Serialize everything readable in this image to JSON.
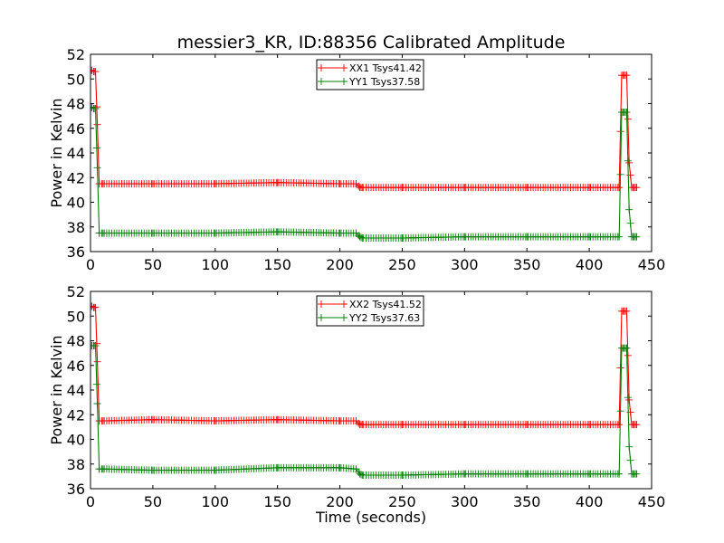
{
  "figure": {
    "title": "messier3_KR, ID:88356 Calibrated Amplitude",
    "xlabel": "Time (seconds)"
  },
  "colors": {
    "red_series": "#ff0000",
    "green_series": "#008000"
  },
  "chart_data": [
    {
      "type": "line",
      "marker": "plus",
      "title": "messier3_KR, ID:88356 Calibrated Amplitude",
      "xlabel": "",
      "ylabel": "Power in Kelvin",
      "xlim": [
        0,
        450
      ],
      "ylim": [
        36,
        52
      ],
      "xticks": [
        0,
        50,
        100,
        150,
        200,
        250,
        300,
        350,
        400,
        450
      ],
      "yticks": [
        36,
        38,
        40,
        42,
        44,
        46,
        48,
        50,
        52
      ],
      "grid": false,
      "legend": "top-center",
      "series": [
        {
          "name": "XX1 Tsys41.42",
          "color": "#ff0000",
          "x": [
            1,
            2.5,
            4,
            5.5,
            7,
            10,
            50,
            100,
            150,
            200,
            213,
            216,
            218,
            250,
            300,
            350,
            400,
            424,
            426,
            428,
            430,
            432,
            434,
            436,
            438
          ],
          "y": [
            50.7,
            50.6,
            50.6,
            46.3,
            41.5,
            41.5,
            41.5,
            41.5,
            41.6,
            41.5,
            41.5,
            41.2,
            41.2,
            41.2,
            41.2,
            41.2,
            41.2,
            41.2,
            50.3,
            50.3,
            50.3,
            43.2,
            41.2,
            41.2,
            41.2
          ]
        },
        {
          "name": "YY1 Tsys37.58",
          "color": "#008000",
          "x": [
            1,
            2.5,
            4,
            5.5,
            7,
            10,
            50,
            100,
            150,
            200,
            213,
            216,
            218,
            250,
            300,
            350,
            400,
            424,
            426,
            428,
            430,
            432,
            434,
            436,
            438
          ],
          "y": [
            47.7,
            47.6,
            47.6,
            42.8,
            37.5,
            37.5,
            37.5,
            37.5,
            37.6,
            37.5,
            37.5,
            37.2,
            37.1,
            37.1,
            37.2,
            37.2,
            37.2,
            37.2,
            47.3,
            47.3,
            47.3,
            39.4,
            37.2,
            37.2,
            37.2
          ]
        }
      ]
    },
    {
      "type": "line",
      "marker": "plus",
      "title": "",
      "xlabel": "Time (seconds)",
      "ylabel": "Power in Kelvin",
      "xlim": [
        0,
        450
      ],
      "ylim": [
        36,
        52
      ],
      "xticks": [
        0,
        50,
        100,
        150,
        200,
        250,
        300,
        350,
        400,
        450
      ],
      "yticks": [
        36,
        38,
        40,
        42,
        44,
        46,
        48,
        50,
        52
      ],
      "grid": false,
      "legend": "top-center",
      "series": [
        {
          "name": "XX2 Tsys41.52",
          "color": "#ff0000",
          "x": [
            1,
            2.5,
            4,
            5.5,
            7,
            10,
            50,
            100,
            150,
            200,
            213,
            216,
            218,
            250,
            300,
            350,
            400,
            424,
            426,
            428,
            430,
            432,
            434,
            436,
            438
          ],
          "y": [
            50.8,
            50.7,
            50.7,
            46.3,
            41.5,
            41.5,
            41.6,
            41.5,
            41.6,
            41.5,
            41.5,
            41.2,
            41.2,
            41.2,
            41.2,
            41.2,
            41.2,
            41.2,
            50.4,
            50.4,
            50.4,
            43.2,
            41.2,
            41.2,
            41.2
          ]
        },
        {
          "name": "YY2 Tsys37.63",
          "color": "#008000",
          "x": [
            1,
            2.5,
            4,
            5.5,
            7,
            10,
            50,
            100,
            150,
            200,
            213,
            216,
            218,
            250,
            300,
            350,
            400,
            424,
            426,
            428,
            430,
            432,
            434,
            436,
            438
          ],
          "y": [
            47.6,
            47.6,
            47.6,
            42.9,
            37.6,
            37.6,
            37.5,
            37.5,
            37.7,
            37.7,
            37.6,
            37.2,
            37.1,
            37.1,
            37.2,
            37.2,
            37.2,
            37.2,
            47.4,
            47.4,
            47.4,
            39.4,
            37.2,
            37.2,
            37.2
          ]
        }
      ]
    }
  ]
}
